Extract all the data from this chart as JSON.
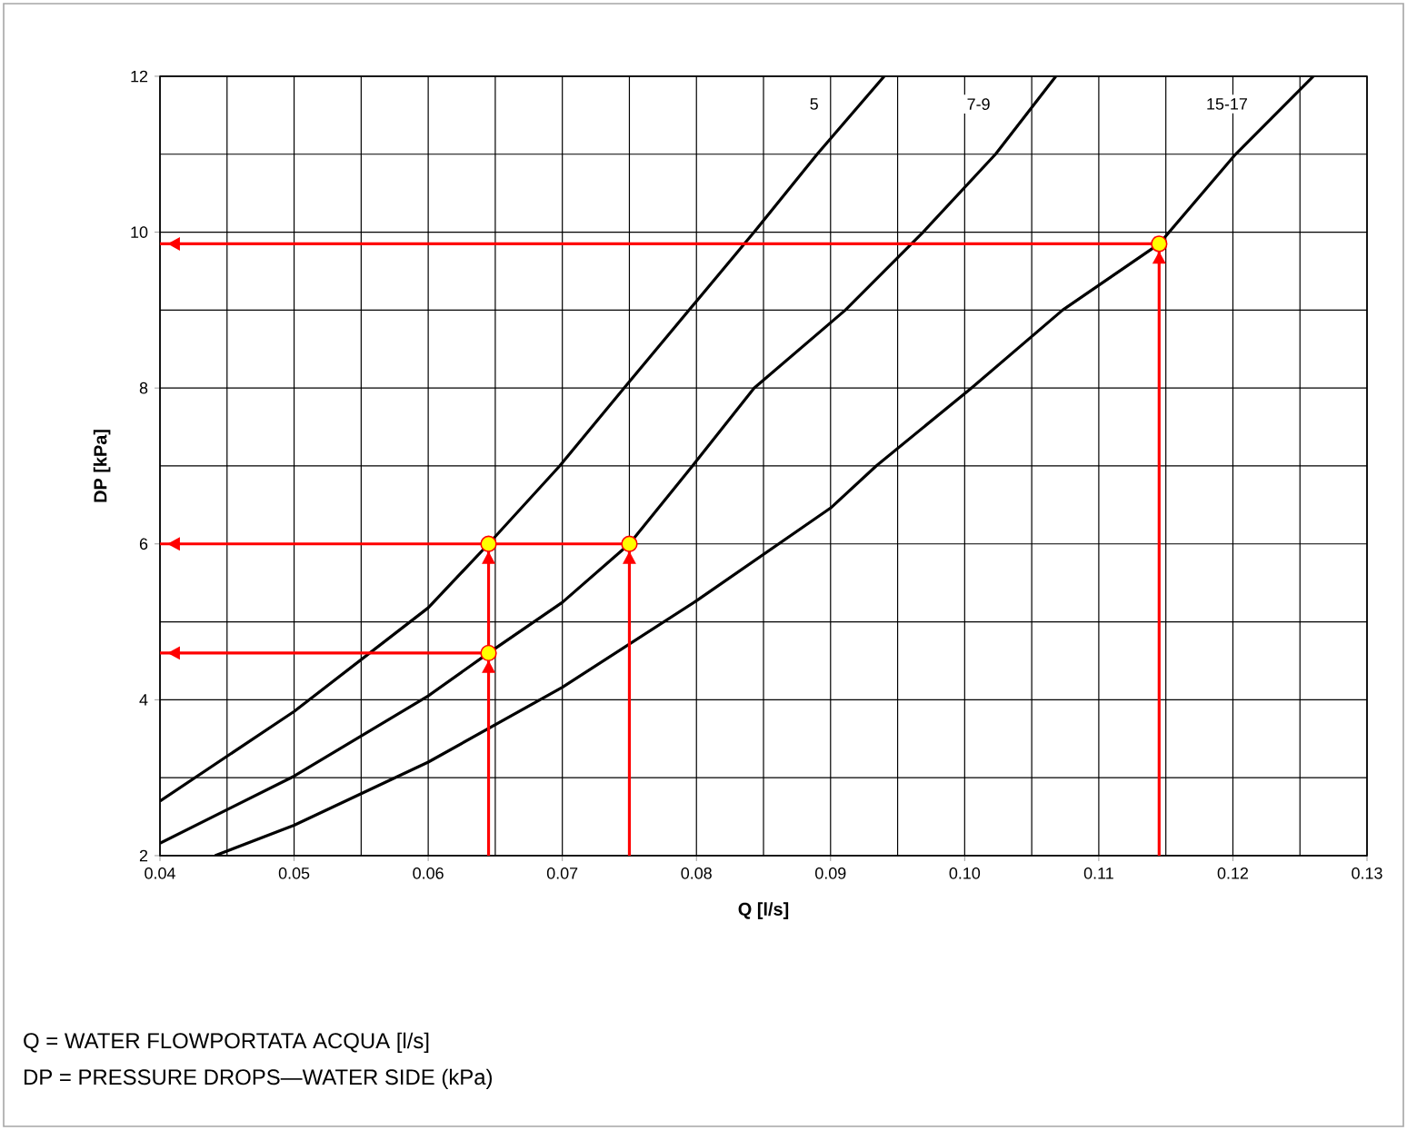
{
  "chart_data": {
    "type": "line",
    "xlabel": "Q [l/s]",
    "ylabel": "DP [kPa]",
    "xlim": [
      0.04,
      0.13
    ],
    "ylim": [
      2,
      12
    ],
    "xticks": [
      0.04,
      0.05,
      0.06,
      0.07,
      0.08,
      0.09,
      {
        "value": 0.1,
        "label": "0.10"
      },
      0.11,
      0.12,
      0.13
    ],
    "yticks": [
      2,
      4,
      6,
      8,
      10,
      12
    ],
    "grid": true,
    "marker": "none",
    "series": [
      {
        "name": "5",
        "color": "#000000",
        "x": [
          0.04,
          0.05,
          0.06,
          0.0645,
          0.0698,
          0.0746,
          0.0843,
          0.089,
          0.094
        ],
        "values": [
          2.7,
          3.85,
          5.18,
          6.0,
          7.0,
          8.0,
          10.0,
          11.0,
          12.0
        ]
      },
      {
        "name": "7-9",
        "color": "#000000",
        "x": [
          0.04,
          0.05,
          0.06,
          0.0645,
          0.07,
          0.075,
          0.0797,
          0.0843,
          0.0911,
          0.0969,
          0.1023,
          0.1068
        ],
        "values": [
          2.16,
          3.02,
          4.05,
          4.6,
          5.25,
          6.0,
          7.0,
          8.0,
          9.0,
          10.0,
          11.0,
          12.0
        ]
      },
      {
        "name": "15-17",
        "color": "#000000",
        "x": [
          0.0441,
          0.05,
          0.06,
          0.07,
          0.08,
          0.09,
          0.0934,
          0.1005,
          0.1073,
          0.1145,
          0.1202,
          0.126
        ],
        "values": [
          2.0,
          2.39,
          3.2,
          4.16,
          5.27,
          6.46,
          7.0,
          8.0,
          9.0,
          9.85,
          11.0,
          12.0
        ]
      },
      {
        "color": "#ff0000",
        "x": [
          0.0645,
          0.0645
        ],
        "values": [
          2.0,
          4.6
        ]
      },
      {
        "color": "#ff0000",
        "x": [
          0.0645,
          0.0645
        ],
        "values": [
          4.6,
          6.0
        ]
      },
      {
        "color": "#ff0000",
        "x": [
          0.075,
          0.075
        ],
        "values": [
          2.0,
          6.0
        ]
      },
      {
        "color": "#ff0000",
        "x": [
          0.1145,
          0.1145
        ],
        "values": [
          2.0,
          9.85
        ]
      },
      {
        "color": "#ff0000",
        "x": [
          0.0645,
          0.04
        ],
        "values": [
          4.6,
          4.6
        ]
      },
      {
        "color": "#ff0000",
        "x": [
          0.075,
          0.04
        ],
        "values": [
          6.0,
          6.0
        ]
      },
      {
        "color": "#ff0000",
        "x": [
          0.1145,
          0.04
        ],
        "values": [
          9.85,
          9.85
        ]
      },
      {
        "type": "scatter",
        "marker": "circle",
        "color": "#ffff00",
        "x": [
          0.0645,
          0.0645,
          0.075,
          0.1145
        ],
        "values": [
          6.0,
          4.6,
          6.0,
          9.85
        ]
      }
    ],
    "annotations": [
      "Q = WATER FLOWPORTATA ACQUA [l/s]",
      "DP = PRESSURE DROPS—WATER SIDE (kPa)"
    ]
  }
}
